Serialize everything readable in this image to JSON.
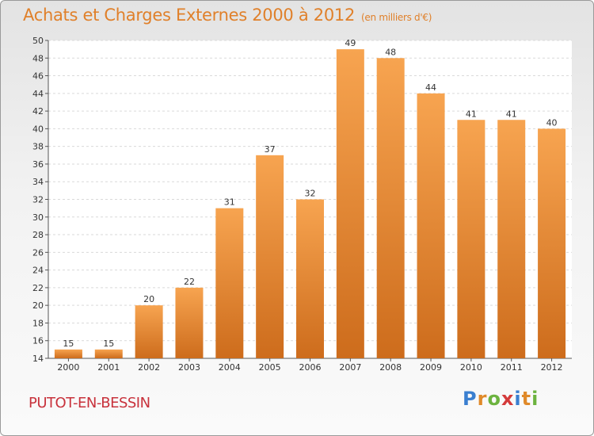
{
  "chart_data": {
    "type": "bar",
    "title": "Achats et Charges Externes 2000 à 2012",
    "subtitle": "(en milliers d'€)",
    "categories": [
      "2000",
      "2001",
      "2002",
      "2003",
      "2004",
      "2005",
      "2006",
      "2007",
      "2008",
      "2009",
      "2010",
      "2011",
      "2012"
    ],
    "values": [
      15,
      15,
      20,
      22,
      31,
      37,
      32,
      49,
      48,
      44,
      41,
      41,
      40
    ],
    "ylim": [
      14,
      50
    ],
    "yticks": [
      14,
      16,
      18,
      20,
      22,
      24,
      26,
      28,
      30,
      32,
      34,
      36,
      38,
      40,
      42,
      44,
      46,
      48,
      50
    ],
    "grid": true,
    "bar_color_top": "#f7a450",
    "bar_color_bottom": "#cd6c1c"
  },
  "location": "PUTOT-EN-BESSIN",
  "logo": {
    "letters": [
      "P",
      "r",
      "o",
      "x",
      "i",
      "t",
      "i"
    ],
    "colors": [
      "#3a7fd0",
      "#e08a2a",
      "#6cb33f",
      "#d43b3b",
      "#3a7fd0",
      "#e08a2a",
      "#6cb33f"
    ]
  }
}
